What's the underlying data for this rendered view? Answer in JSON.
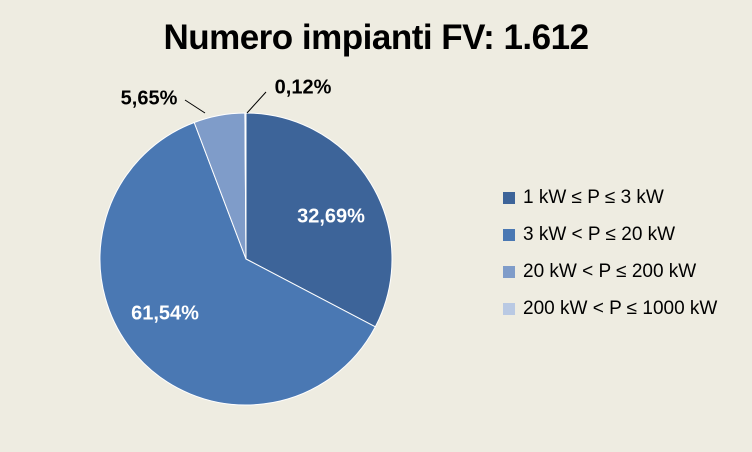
{
  "chart_data": {
    "type": "pie",
    "title": "Numero impianti FV: 1.612",
    "slices": [
      {
        "label": "1 kW ≤ P ≤ 3 kW",
        "value": 32.69,
        "value_label": "32,69%",
        "color": "#3d6499"
      },
      {
        "label": "3 kW < P ≤ 20 kW",
        "value": 61.54,
        "value_label": "61,54%",
        "color": "#4a78b3"
      },
      {
        "label": "20 kW < P ≤ 200 kW",
        "value": 5.65,
        "value_label": "5,65%",
        "color": "#7f9cc9"
      },
      {
        "label": "200 kW < P ≤ 1000 kW",
        "value": 0.12,
        "value_label": "0,12%",
        "color": "#b9c9e3"
      }
    ],
    "legend_position": "right"
  }
}
